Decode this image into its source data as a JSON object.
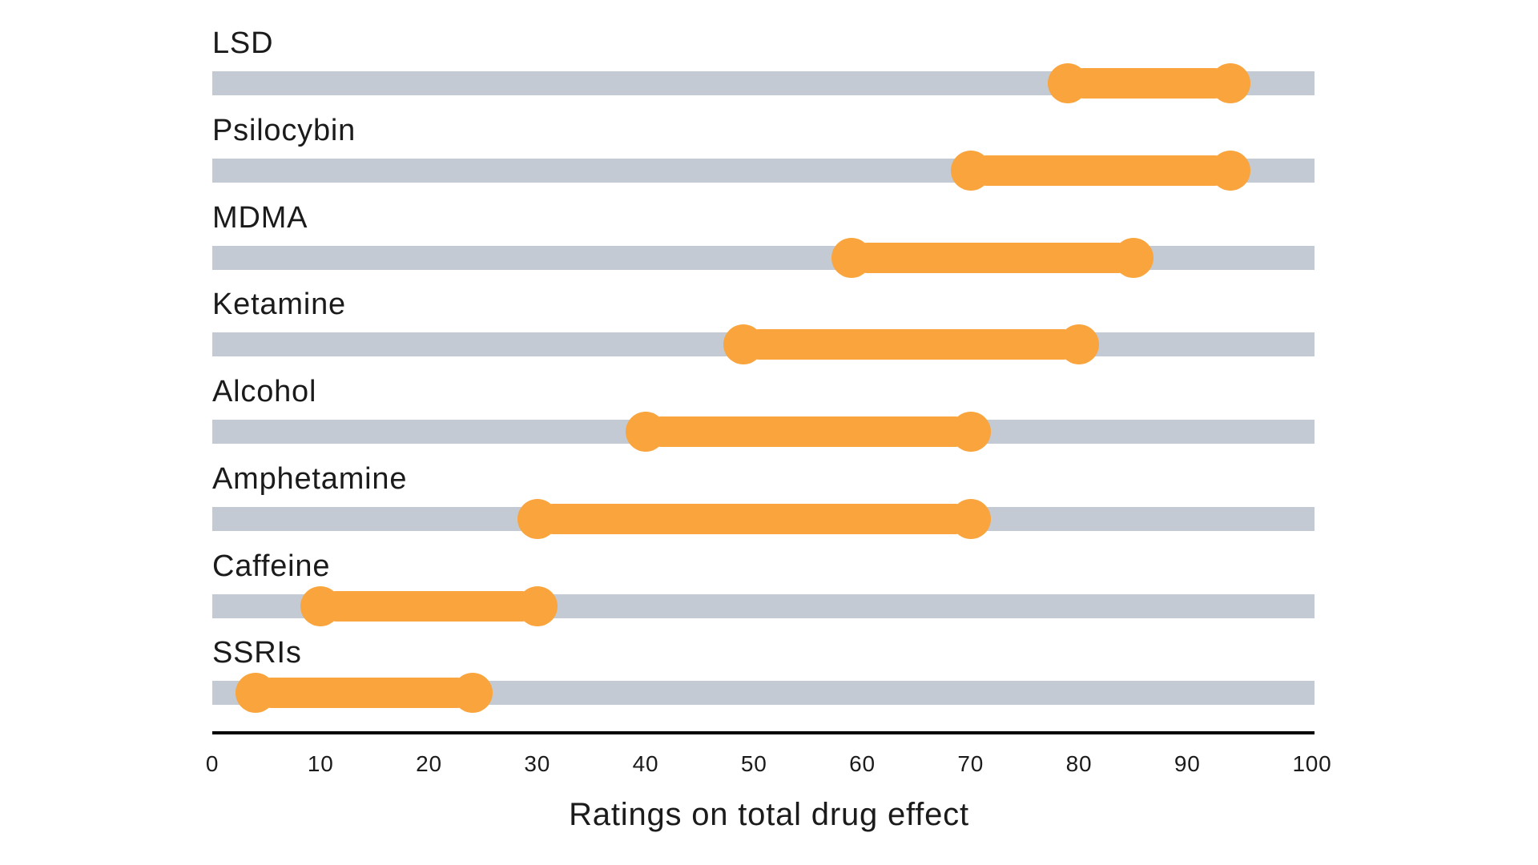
{
  "chart_data": {
    "type": "dumbbell-range",
    "title": "",
    "xlabel": "Ratings on total drug effect",
    "xlim": [
      0,
      100
    ],
    "x_ticks": [
      0,
      10,
      20,
      30,
      40,
      50,
      60,
      70,
      80,
      90,
      100
    ],
    "grid": false,
    "legend_position": "none",
    "categories": [
      "LSD",
      "Psilocybin",
      "MDMA",
      "Ketamine",
      "Alcohol",
      "Amphetamine",
      "Caffeine",
      "SSRIs"
    ],
    "series": [
      {
        "label": "LSD",
        "start": 79,
        "end": 94
      },
      {
        "label": "Psilocybin",
        "start": 70,
        "end": 94
      },
      {
        "label": "MDMA",
        "start": 59,
        "end": 85
      },
      {
        "label": "Ketamine",
        "start": 49,
        "end": 80
      },
      {
        "label": "Alcohol",
        "start": 40,
        "end": 70
      },
      {
        "label": "Amphetamine",
        "start": 30,
        "end": 70
      },
      {
        "label": "Caffeine",
        "start": 10,
        "end": 30
      },
      {
        "label": "SSRIs",
        "start": 4,
        "end": 24
      }
    ],
    "colors": {
      "range": "#F9A43C",
      "track": "#C4CAD3",
      "axis_line": "#000000",
      "text": "#1B1B1B",
      "background": "#FFFFFF"
    }
  }
}
